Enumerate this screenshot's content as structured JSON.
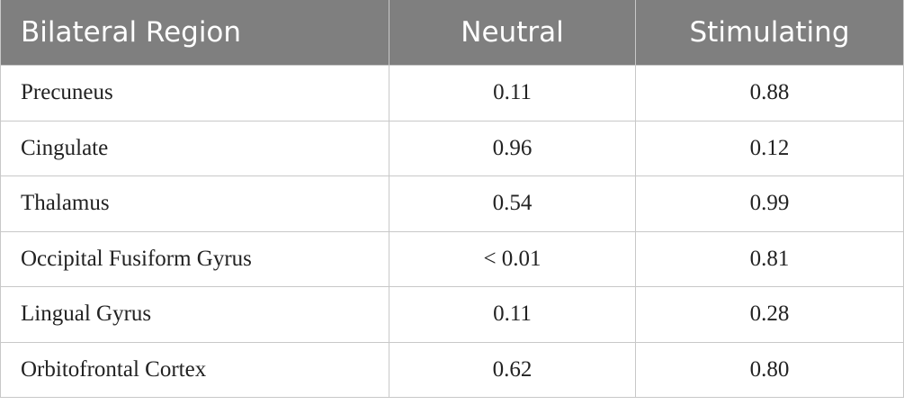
{
  "table": {
    "header": [
      "Bilateral Region",
      "Neutral",
      "Stimulating"
    ],
    "rows": [
      [
        "Precuneus",
        "0.11",
        "0.88"
      ],
      [
        "Cingulate",
        "0.96",
        "0.12"
      ],
      [
        "Thalamus",
        "0.54",
        "0.99"
      ],
      [
        "Occipital Fusiform Gyrus",
        "< 0.01",
        "0.81"
      ],
      [
        "Lingual Gyrus",
        "0.11",
        "0.28"
      ],
      [
        "Orbitofrontal Cortex",
        "0.62",
        "0.80"
      ]
    ]
  }
}
